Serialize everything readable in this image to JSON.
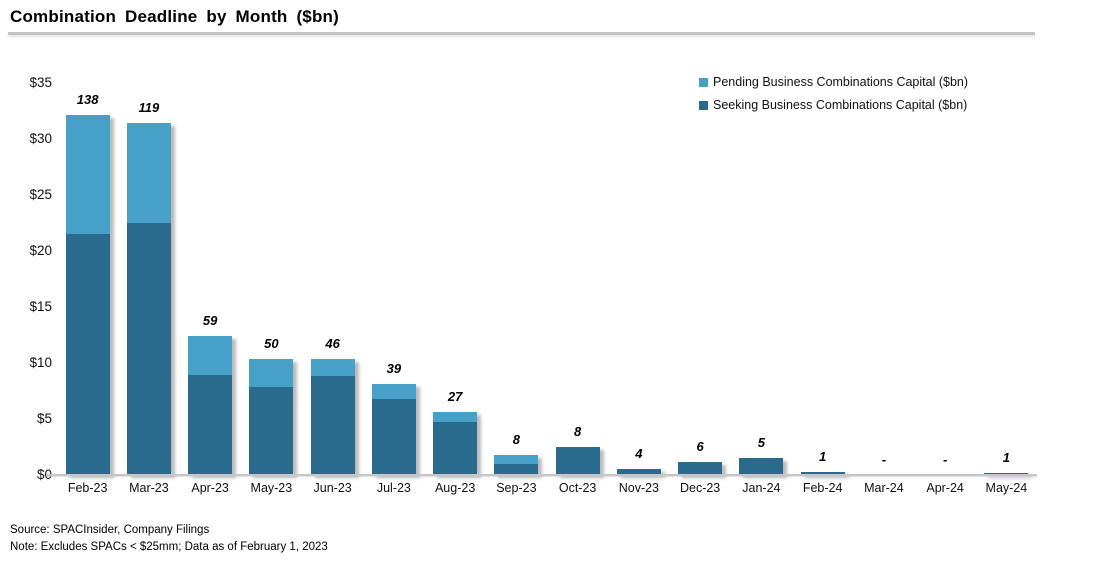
{
  "title": "Combination Deadline by Month ($bn)",
  "legend": [
    {
      "label": "Pending Business Combinations Capital ($bn)",
      "color": "#46A0C8",
      "icon": "legend-swatch-square"
    },
    {
      "label": "Seeking Business Combinations Capital ($bn)",
      "color": "#2A6A8C",
      "icon": "legend-swatch-square"
    }
  ],
  "y_axis": {
    "tick_labels": [
      "$35",
      "$30",
      "$25",
      "$20",
      "$15",
      "$10",
      "$5",
      "$0"
    ],
    "tick_values": [
      35,
      30,
      25,
      20,
      15,
      10,
      5,
      0
    ],
    "min": 0,
    "max": 35
  },
  "footer": {
    "source": "Source: SPACInsider, Company Filings",
    "note": "Note: Excludes SPACs < $25mm; Data as of February 1, 2023"
  },
  "chart_data": {
    "type": "bar",
    "stacked": true,
    "title": "Combination Deadline by Month ($bn)",
    "categories": [
      "Feb-23",
      "Mar-23",
      "Apr-23",
      "May-23",
      "Jun-23",
      "Jul-23",
      "Aug-23",
      "Sep-23",
      "Oct-23",
      "Nov-23",
      "Dec-23",
      "Jan-24",
      "Feb-24",
      "Mar-24",
      "Apr-24",
      "May-24"
    ],
    "series": [
      {
        "name": "Seeking Business Combinations Capital ($bn)",
        "color": "#2A6A8C",
        "values": [
          21.5,
          22.5,
          8.9,
          7.9,
          8.8,
          6.8,
          4.7,
          1.0,
          2.5,
          0.5,
          1.2,
          1.5,
          0.25,
          0,
          0,
          0.15
        ]
      },
      {
        "name": "Pending Business Combinations Capital ($bn)",
        "color": "#46A0C8",
        "values": [
          10.6,
          8.9,
          3.5,
          2.5,
          1.6,
          1.3,
          0.9,
          0.8,
          0,
          0,
          0,
          0,
          0,
          0,
          0,
          0
        ]
      }
    ],
    "bar_labels": [
      "138",
      "119",
      "59",
      "50",
      "46",
      "39",
      "27",
      "8",
      "8",
      "4",
      "6",
      "5",
      "1",
      "-",
      "-",
      "1"
    ],
    "ylim": [
      0,
      35
    ],
    "grid": false,
    "legend_position": "top-right"
  }
}
